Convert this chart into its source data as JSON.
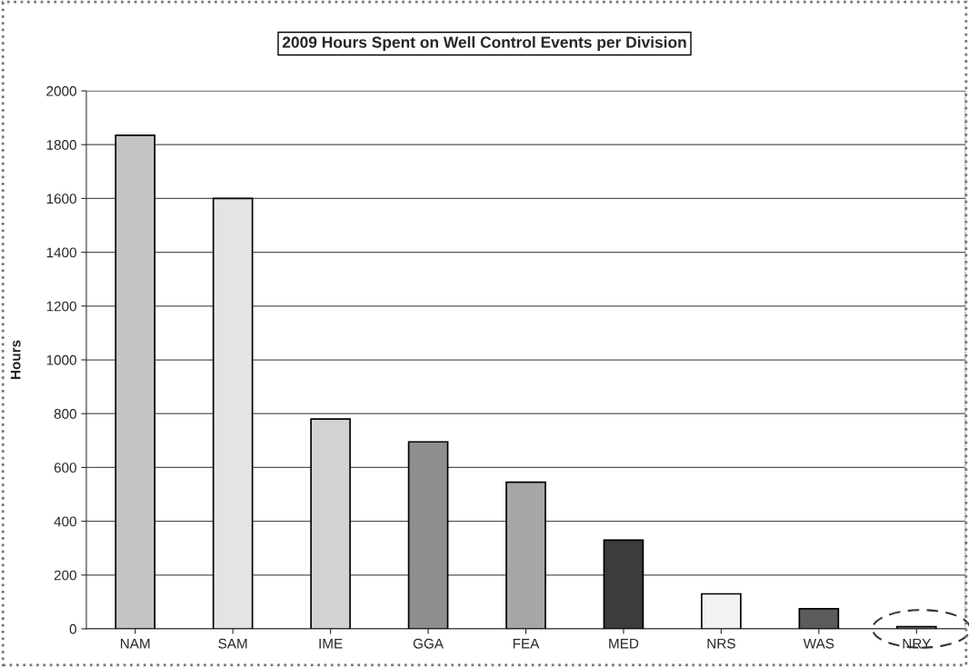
{
  "chart_data": {
    "type": "bar",
    "title": "2009 Hours Spent on Well Control Events per Division",
    "ylabel": "Hours",
    "categories": [
      "NAM",
      "SAM",
      "IME",
      "GGA",
      "FEA",
      "MED",
      "NRS",
      "WAS",
      "NRY"
    ],
    "values": [
      1835,
      1600,
      780,
      695,
      545,
      330,
      130,
      75,
      8
    ],
    "colors": [
      "#c4c4c4",
      "#e4e4e4",
      "#d2d2d2",
      "#8e8e8e",
      "#a6a6a6",
      "#3c3c3c",
      "#f2f2f2",
      "#5c5c5c",
      "#b0b0b0"
    ],
    "ylim": [
      0,
      2000
    ],
    "yticks": [
      0,
      200,
      400,
      600,
      800,
      1000,
      1200,
      1400,
      1600,
      1800,
      2000
    ],
    "grid": "y",
    "legend": false
  }
}
